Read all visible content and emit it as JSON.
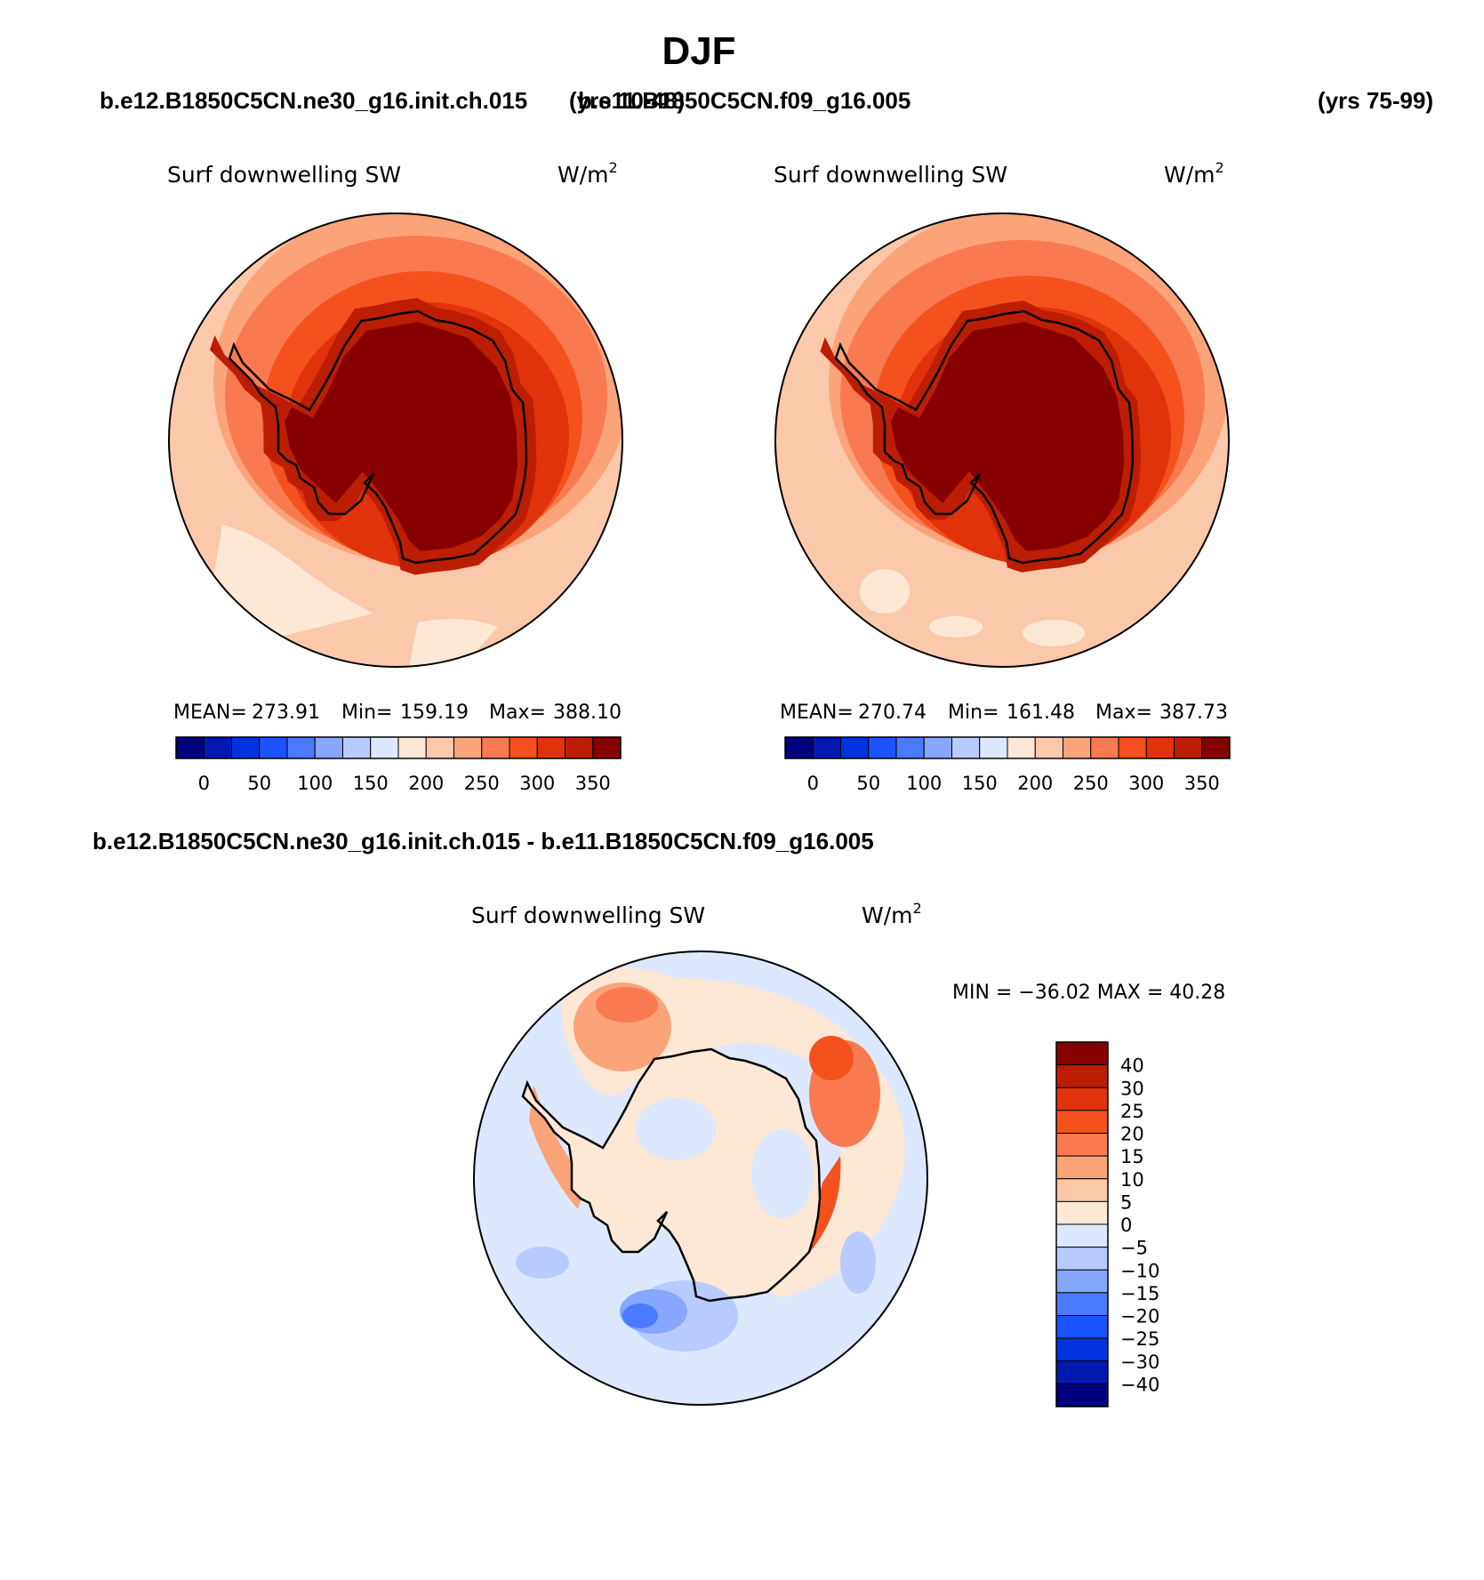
{
  "page": {
    "title": "DJF",
    "case1_header": "b.e12.B1850C5CN.ne30_g16.init.ch.015",
    "case1_years": "(yrs 10-48)",
    "case2_header": "b.e11.B1850C5CN.f09_g16.005",
    "case2_years": "(yrs 75-99)",
    "diff_header": "b.e12.B1850C5CN.ne30_g16.init.ch.015 - b.e11.B1850C5CN.f09_g16.005"
  },
  "chart_data": [
    {
      "type": "heatmap",
      "projection": "south-polar-stereographic",
      "variable": "Surf downwelling SW",
      "units": "W/m",
      "units_exp": "2",
      "stats": {
        "mean_label": "MEAN=",
        "mean": "273.91",
        "min_label": "Min=",
        "min": "159.19",
        "max_label": "Max=",
        "max": "388.10"
      },
      "colorbar": {
        "ticks": [
          "0",
          "50",
          "100",
          "150",
          "200",
          "250",
          "300",
          "350"
        ],
        "colors": [
          "#00007f",
          "#0019b0",
          "#0033dd",
          "#1a53ff",
          "#4a7aff",
          "#86a6ff",
          "#b7cbff",
          "#dde8ff",
          "#fde8d6",
          "#fcc8aa",
          "#fba47a",
          "#f97a50",
          "#f4511f",
          "#e0330c",
          "#bb1e05",
          "#870000"
        ]
      }
    },
    {
      "type": "heatmap",
      "projection": "south-polar-stereographic",
      "variable": "Surf downwelling SW",
      "units": "W/m",
      "units_exp": "2",
      "stats": {
        "mean_label": "MEAN=",
        "mean": "270.74",
        "min_label": "Min=",
        "min": "161.48",
        "max_label": "Max=",
        "max": "387.73"
      },
      "colorbar": {
        "ticks": [
          "0",
          "50",
          "100",
          "150",
          "200",
          "250",
          "300",
          "350"
        ],
        "colors": [
          "#00007f",
          "#0019b0",
          "#0033dd",
          "#1a53ff",
          "#4a7aff",
          "#86a6ff",
          "#b7cbff",
          "#dde8ff",
          "#fde8d6",
          "#fcc8aa",
          "#fba47a",
          "#f97a50",
          "#f4511f",
          "#e0330c",
          "#bb1e05",
          "#870000"
        ]
      }
    },
    {
      "type": "heatmap",
      "projection": "south-polar-stereographic",
      "variable": "Surf downwelling SW",
      "units": "W/m",
      "units_exp": "2",
      "stats_text": "MIN = −36.02 MAX =  40.28",
      "colorbar": {
        "ticks": [
          "40",
          "30",
          "25",
          "20",
          "15",
          "10",
          "5",
          "0",
          "−5",
          "−10",
          "−15",
          "−20",
          "−25",
          "−30",
          "−40"
        ],
        "colors": [
          "#870000",
          "#bb1e05",
          "#e0330c",
          "#f4511f",
          "#f97a50",
          "#fba47a",
          "#fcc8aa",
          "#fde8d6",
          "#dde8ff",
          "#b7cbff",
          "#86a6ff",
          "#4a7aff",
          "#1a53ff",
          "#0033dd",
          "#0019b0",
          "#00007f"
        ]
      }
    }
  ]
}
